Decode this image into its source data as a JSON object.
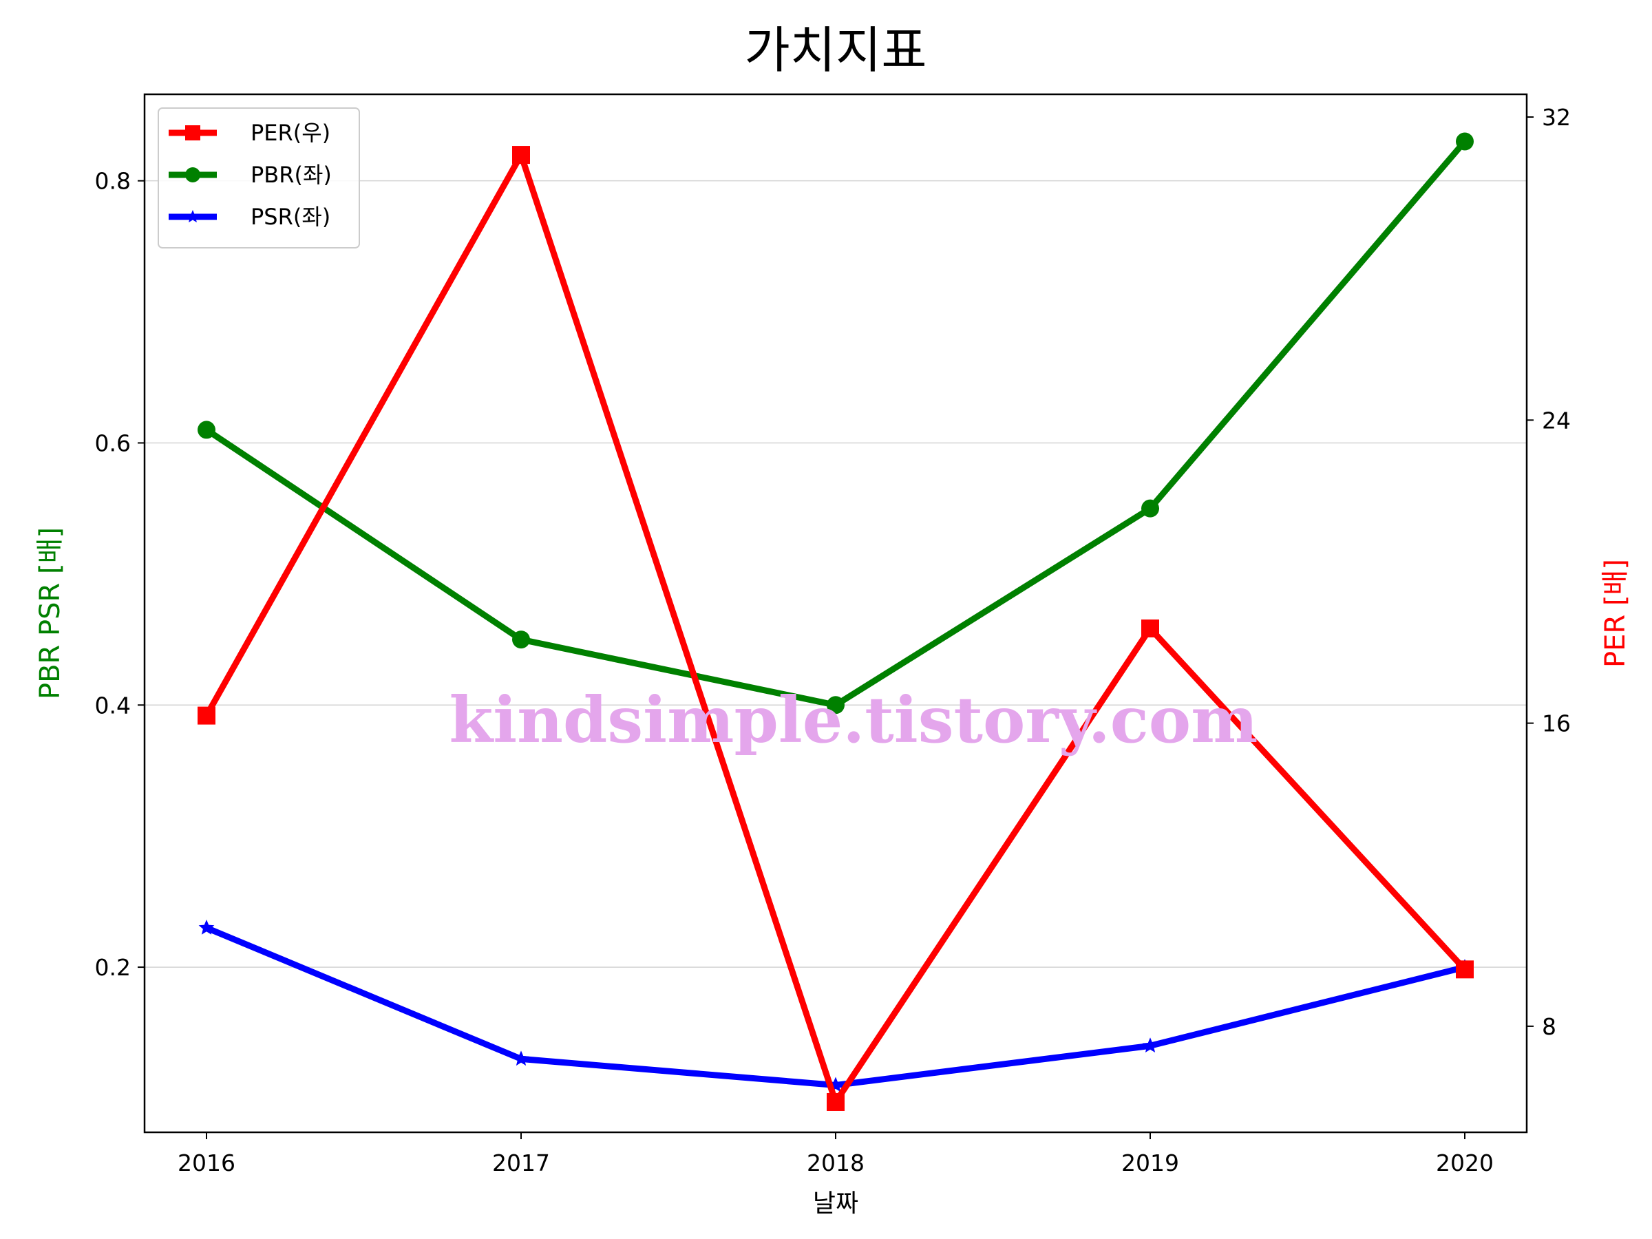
{
  "chart_data": {
    "type": "line",
    "title": "가치지표",
    "xlabel": "날짜",
    "ylabel_left": "PBR PSR [배]",
    "ylabel_right": "PER [배]",
    "categories": [
      "2016",
      "2017",
      "2018",
      "2019",
      "2020"
    ],
    "ylim_left": [
      0.074,
      0.866
    ],
    "ylim_right": [
      5.2,
      32.6
    ],
    "yticks_left": [
      0.2,
      0.4,
      0.6,
      0.8
    ],
    "yticks_left_labels": [
      "0.2",
      "0.4",
      "0.6",
      "0.8"
    ],
    "yticks_right": [
      8,
      16,
      24,
      32
    ],
    "yticks_right_labels": [
      "8",
      "16",
      "24",
      "32"
    ],
    "grid": "horizontal (left axis)",
    "legend_position": "top-left",
    "series": [
      {
        "name": "PER(우)",
        "axis": "right",
        "color": "#ff0000",
        "marker": "square",
        "values": [
          16.2,
          31.0,
          6.0,
          18.5,
          9.5
        ]
      },
      {
        "name": "PBR(좌)",
        "axis": "left",
        "color": "#008000",
        "marker": "circle",
        "values": [
          0.61,
          0.45,
          0.4,
          0.55,
          0.83
        ]
      },
      {
        "name": "PSR(좌)",
        "axis": "left",
        "color": "#0000ff",
        "marker": "star",
        "values": [
          0.23,
          0.13,
          0.11,
          0.14,
          0.2
        ]
      }
    ]
  },
  "watermark": "kindsimple.tistory.com"
}
